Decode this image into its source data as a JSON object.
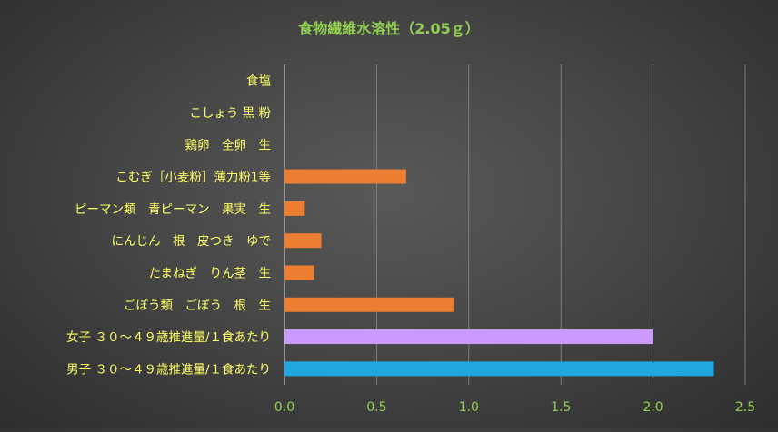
{
  "chart_data": {
    "type": "bar",
    "orientation": "horizontal",
    "title": "食物繊維水溶性（2.05ｇ）",
    "xlabel": "",
    "ylabel": "",
    "xlim": [
      0,
      2.5
    ],
    "x_ticks": [
      "0.0",
      "0.5",
      "1.0",
      "1.5",
      "2.0",
      "2.5"
    ],
    "grid": "vertical",
    "legend": "none",
    "categories": [
      "食塩",
      "こしょう 黒 粉",
      "鶏卵　全卵　生",
      "こむぎ［小麦粉］薄力粉1等",
      "ピーマン類　青ピーマン　果実　生",
      "にんじん　根　皮つき　ゆで",
      "たまねぎ　りん茎　生",
      "ごぼう類　ごぼう　根　生",
      "女子 ３０～４９歳推進量/１食あたり",
      "男子 ３０～４９歳推進量/１食あたり"
    ],
    "values": [
      0,
      0,
      0,
      0.66,
      0.11,
      0.2,
      0.16,
      0.92,
      2.0,
      2.33
    ],
    "colors": [
      "#ed7d31",
      "#ed7d31",
      "#ed7d31",
      "#ed7d31",
      "#ed7d31",
      "#ed7d31",
      "#ed7d31",
      "#ed7d31",
      "#cc99ff",
      "#1ea7e1"
    ],
    "title_color": "#92d050",
    "category_label_color": "#ffff66",
    "tick_label_color": "#92d050"
  }
}
